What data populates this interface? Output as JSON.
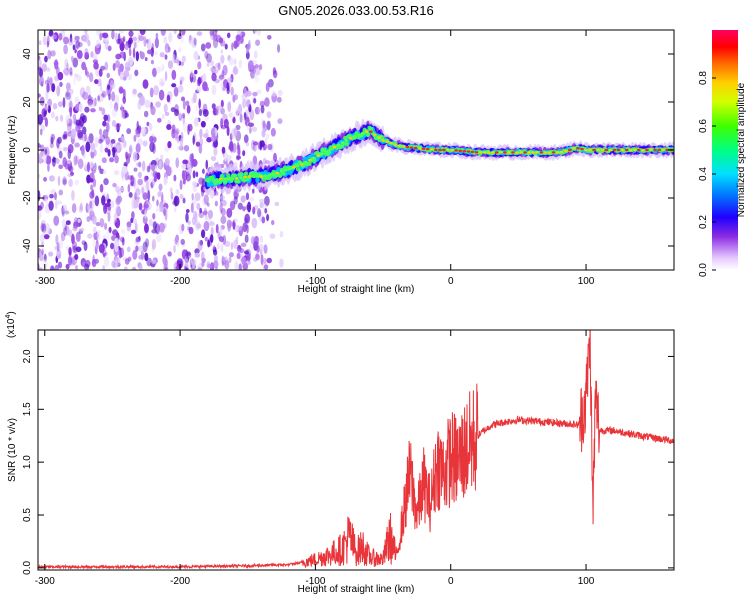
{
  "title": "GN05.2026.033.00.53.R16",
  "colors": {
    "line": "#e8353a",
    "axis": "#000000"
  },
  "chart_data": [
    {
      "type": "heatmap",
      "name": "spectrogram",
      "xlabel": "Height of straight line (km)",
      "ylabel": "Frequency (Hz)",
      "xlim": [
        -305,
        165
      ],
      "ylim": [
        -50,
        50
      ],
      "xticks": [
        -300,
        -200,
        -100,
        0,
        100
      ],
      "xtick_labels": [
        "-300",
        "-200",
        "-100",
        "0",
        "100"
      ],
      "yticks": [
        -40,
        -20,
        0,
        20,
        40
      ],
      "ytick_labels": [
        "-40",
        "-20",
        "0",
        "20",
        "40"
      ],
      "ridge": {
        "x": [
          -180,
          -170,
          -160,
          -150,
          -140,
          -130,
          -120,
          -110,
          -100,
          -90,
          -80,
          -70,
          -60,
          -55,
          -50,
          -45,
          -40,
          -30,
          -20,
          -10,
          0,
          20,
          40,
          60,
          80,
          88,
          92,
          100,
          120,
          140,
          165
        ],
        "y": [
          -13,
          -12,
          -12,
          -11,
          -11,
          -10,
          -8,
          -6,
          -3,
          0,
          3,
          6,
          8,
          6,
          4,
          3,
          2,
          1,
          0.5,
          0,
          0,
          -1,
          -1,
          -1,
          -1,
          0,
          1,
          0,
          0,
          0,
          0
        ]
      },
      "colorbar": {
        "label": "Normalized spectral amplitude",
        "range": [
          0,
          1
        ],
        "ticks": [
          0.0,
          0.2,
          0.4,
          0.6,
          0.8
        ],
        "tick_labels": [
          "0.0",
          "0.2",
          "0.4",
          "0.6",
          "0.8"
        ]
      }
    },
    {
      "type": "line",
      "name": "snr",
      "xlabel": "Height of straight line (km)",
      "ylabel": "SNR (10 * v/v)",
      "multiplier": "(x10",
      "multiplier_exp": "4",
      "multiplier_close": ")",
      "xlim": [
        -305,
        165
      ],
      "ylim": [
        -0.02,
        2.25
      ],
      "xticks": [
        -300,
        -200,
        -100,
        0,
        100
      ],
      "xtick_labels": [
        "-300",
        "-200",
        "-100",
        "0",
        "100"
      ],
      "yticks": [
        0.0,
        0.5,
        1.0,
        1.5,
        2.0
      ],
      "ytick_labels": [
        "0.0",
        "0.5",
        "1.0",
        "1.5",
        "2.0"
      ],
      "series": [
        {
          "name": "SNR",
          "x": [
            -305,
            -250,
            -200,
            -150,
            -120,
            -110,
            -100,
            -90,
            -80,
            -75,
            -70,
            -65,
            -60,
            -50,
            -45,
            -40,
            -35,
            -30,
            -25,
            -20,
            -15,
            -10,
            -5,
            0,
            5,
            10,
            20,
            30,
            40,
            50,
            60,
            70,
            80,
            90,
            95,
            100,
            103,
            105,
            107,
            110,
            120,
            140,
            165
          ],
          "y": [
            0.01,
            0.01,
            0.01,
            0.02,
            0.03,
            0.05,
            0.08,
            0.12,
            0.18,
            0.3,
            0.15,
            0.2,
            0.1,
            0.08,
            0.3,
            0.1,
            0.5,
            0.9,
            0.5,
            0.8,
            0.6,
            1.0,
            0.9,
            1.05,
            1.0,
            1.1,
            1.25,
            1.35,
            1.38,
            1.4,
            1.39,
            1.38,
            1.37,
            1.36,
            1.35,
            1.6,
            2.2,
            0.5,
            1.6,
            1.3,
            1.3,
            1.25,
            1.2
          ]
        }
      ]
    }
  ]
}
